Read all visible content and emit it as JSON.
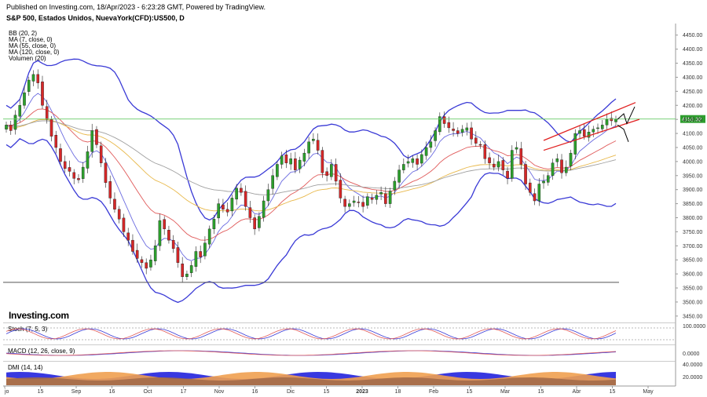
{
  "header": {
    "published": "Published on Investing.com, 18/Apr/2023 - 6:23:28 GMT, Powered by TradingView.",
    "symbol": "S&P 500, Estados Unidos, NuevaYork(CFD):US500, D"
  },
  "indicators": [
    "BB (20, 2)",
    "MA (7, close, 0)",
    "MA (55, close, 0)",
    "MA (120, close, 0)",
    "Volumen (20)"
  ],
  "logo": "Investing.com",
  "colors": {
    "up": "#2ca02c",
    "down": "#d62728",
    "bb": "#3a3ad6",
    "ma7": "#6a6ae0",
    "ma55": "#e05a5a",
    "ma120": "#e8b84a",
    "gray_ma": "#a0a0a0",
    "current_line": "#66cc66",
    "current_label_bg": "#2e9e2e",
    "support": "#555555",
    "channel": "#e02020",
    "dmi_blue": "#3838e0",
    "dmi_orange": "#f0a050",
    "dmi_brown": "#a06848"
  },
  "chart_data": {
    "type": "candlestick",
    "price_axis": {
      "min": 3430,
      "max": 4480,
      "ticks": [
        4450,
        4400,
        4350,
        4300,
        4250,
        4200,
        4150,
        4100,
        4050,
        4000,
        3950,
        3900,
        3850,
        3800,
        3750,
        3700,
        3650,
        3600,
        3550,
        3500,
        3450
      ]
    },
    "current_price": "4151.32",
    "support_level": 3570,
    "x_labels": [
      "jo",
      "15",
      "Sep",
      "16",
      "Oct",
      "17",
      "Nov",
      "16",
      "Dic",
      "15",
      "2023",
      "18",
      "Feb",
      "15",
      "Mar",
      "15",
      "Abr",
      "15",
      "May"
    ],
    "closes": [
      4130,
      4110,
      4165,
      4200,
      4245,
      4290,
      4310,
      4280,
      4200,
      4150,
      4090,
      4050,
      4000,
      3975,
      3965,
      3940,
      3935,
      3980,
      4035,
      4110,
      4060,
      3995,
      3925,
      3870,
      3830,
      3795,
      3750,
      3720,
      3680,
      3655,
      3640,
      3620,
      3650,
      3700,
      3790,
      3760,
      3720,
      3690,
      3640,
      3590,
      3600,
      3630,
      3680,
      3660,
      3710,
      3760,
      3795,
      3850,
      3830,
      3820,
      3870,
      3905,
      3890,
      3840,
      3800,
      3760,
      3805,
      3860,
      3900,
      3950,
      3990,
      4020,
      3995,
      4010,
      3970,
      4005,
      4030,
      4070,
      4080,
      4040,
      3960,
      3950,
      3990,
      3930,
      3870,
      3840,
      3850,
      3860,
      3855,
      3840,
      3875,
      3865,
      3880,
      3890,
      3850,
      3895,
      3930,
      3970,
      3990,
      4000,
      4010,
      3990,
      4025,
      4050,
      4070,
      4110,
      4160,
      4135,
      4120,
      4110,
      4100,
      4115,
      4120,
      4080,
      4065,
      4060,
      4010,
      3995,
      3980,
      4000,
      3970,
      3940,
      4040,
      4050,
      3990,
      3920,
      3890,
      3860,
      3920,
      3930,
      3950,
      3995,
      4010,
      3960,
      3980,
      4030,
      4100,
      4110,
      4090,
      4105,
      4115,
      4120,
      4130,
      4150,
      4145,
      4151
    ]
  },
  "panes": {
    "stoch": {
      "title": "Stoch (7, 5, 3)",
      "ticks": [
        "100.0000"
      ]
    },
    "macd": {
      "title": "MACD (12, 26, close, 9)",
      "ticks": [
        "0.0000"
      ]
    },
    "dmi": {
      "title": "DMI (14, 14)",
      "ticks": [
        "40.0000",
        "20.0000"
      ]
    }
  }
}
